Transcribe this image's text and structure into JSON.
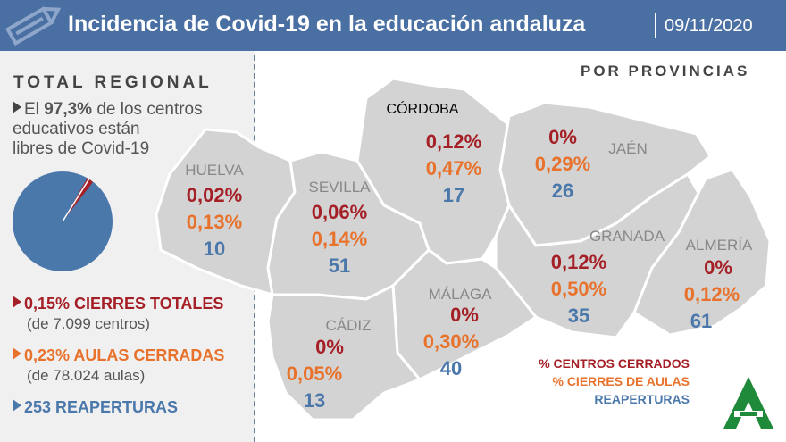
{
  "header": {
    "title": "Incidencia de Covid-19 en la educación andaluza",
    "date": "09/11/2020"
  },
  "regional": {
    "heading": "TOTAL REGIONAL",
    "desc_pre": "El ",
    "desc_bold": "97,3%",
    "desc_post": " de los centros",
    "desc_line2": "educativos están",
    "desc_line3": "libres de Covid-19",
    "pie": {
      "free_pct": 97.3,
      "closed_pct": 0.15
    },
    "stats": [
      {
        "value": "0,15% CIERRES TOTALES",
        "sub": "(de 7.099 centros)"
      },
      {
        "value": "0,23% AULAS CERRADAS",
        "sub": "(de 78.024 aulas)"
      },
      {
        "value": "253 REAPERTURAS",
        "sub": ""
      }
    ]
  },
  "map": {
    "heading": "POR PROVINCIAS",
    "provinces": [
      {
        "name": "HUELVA",
        "closed": "0,02%",
        "classrooms": "0,13%",
        "reopen": "10"
      },
      {
        "name": "SEVILLA",
        "closed": "0,06%",
        "classrooms": "0,14%",
        "reopen": "51"
      },
      {
        "name": "CÓRDOBA",
        "closed": "0,12%",
        "classrooms": "0,47%",
        "reopen": "17"
      },
      {
        "name": "JAÉN",
        "closed": "0%",
        "classrooms": "0,29%",
        "reopen": "26"
      },
      {
        "name": "GRANADA",
        "closed": "0,12%",
        "classrooms": "0,50%",
        "reopen": "35"
      },
      {
        "name": "ALMERÍA",
        "closed": "0%",
        "classrooms": "0,12%",
        "reopen": "61"
      },
      {
        "name": "MÁLAGA",
        "closed": "0%",
        "classrooms": "0,30%",
        "reopen": "40"
      },
      {
        "name": "CÁDIZ",
        "closed": "0%",
        "classrooms": "0,05%",
        "reopen": "13"
      }
    ]
  },
  "legend": [
    "% CENTROS CERRADOS",
    "% CIERRES DE AULAS",
    "REAPERTURAS"
  ],
  "colors": {
    "header": "#4a6fa3",
    "closed": "#a51f26",
    "classrooms": "#e8722b",
    "reopen": "#4b78ab",
    "logo": "#1f8a3a"
  }
}
